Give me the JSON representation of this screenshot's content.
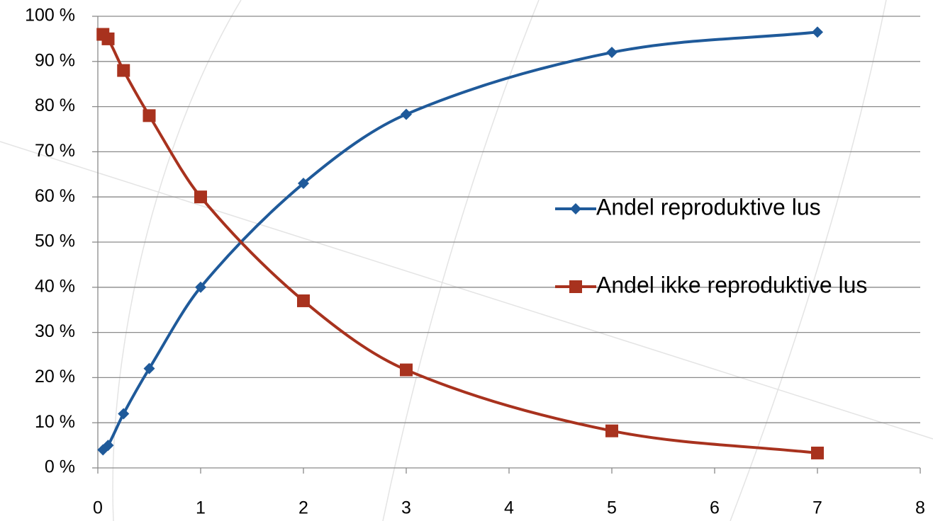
{
  "chart_data": {
    "type": "line",
    "legend": "right",
    "grid": true,
    "smooth": true,
    "xlim": [
      0,
      8
    ],
    "xticks": [
      0,
      1,
      2,
      3,
      4,
      5,
      6,
      7,
      8
    ],
    "ylim": [
      0,
      100
    ],
    "yticks": [
      {
        "value": 0,
        "label": "0 %"
      },
      {
        "value": 10,
        "label": "10 %"
      },
      {
        "value": 20,
        "label": "20 %"
      },
      {
        "value": 30,
        "label": "30 %"
      },
      {
        "value": 40,
        "label": "40 %"
      },
      {
        "value": 50,
        "label": "50 %"
      },
      {
        "value": 60,
        "label": "60 %"
      },
      {
        "value": 70,
        "label": "70 %"
      },
      {
        "value": 80,
        "label": "80 %"
      },
      {
        "value": 90,
        "label": "90 %"
      },
      {
        "value": 100,
        "label": "100 %"
      }
    ],
    "series": [
      {
        "name": "Andel reproduktive lus",
        "color": "#1f5a9a",
        "marker": "diamond",
        "x": [
          0.05,
          0.1,
          0.25,
          0.5,
          1,
          2,
          3,
          5,
          7
        ],
        "values": [
          4,
          5,
          12,
          22,
          40,
          63,
          78.3,
          92,
          96.5
        ]
      },
      {
        "name": "Andel ikke reproduktive lus",
        "color": "#a8321e",
        "marker": "square",
        "x": [
          0.05,
          0.1,
          0.25,
          0.5,
          1,
          2,
          3,
          5,
          7
        ],
        "values": [
          96,
          95,
          88,
          78,
          60,
          37,
          21.7,
          8.2,
          3.3
        ]
      }
    ]
  }
}
